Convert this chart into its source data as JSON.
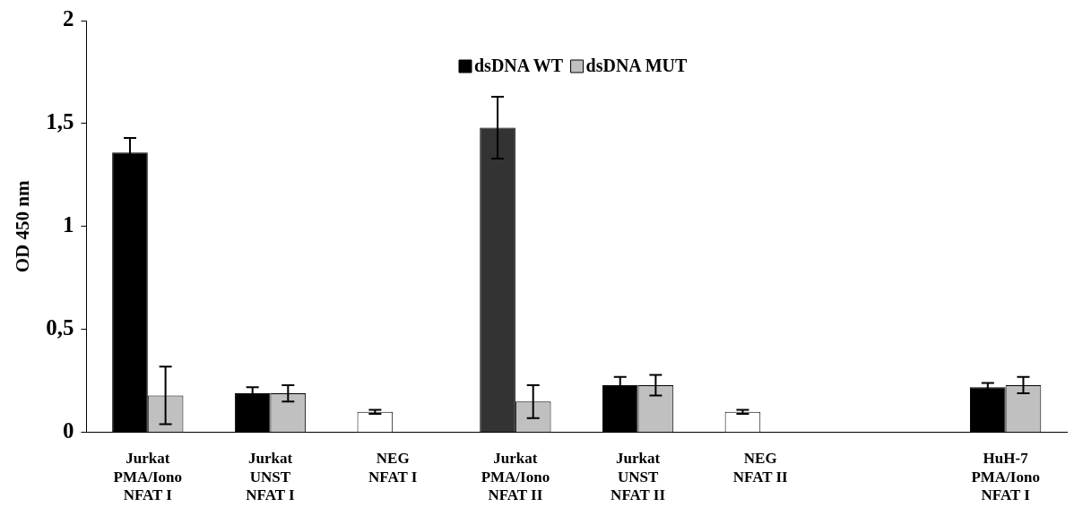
{
  "chart_data": {
    "type": "bar",
    "ylabel": "OD 450 nm",
    "categories": [
      "Jurkat\nPMA/Iono\nNFAT I",
      "Jurkat\nUNST\nNFAT I",
      "NEG\nNFAT I",
      "Jurkat\nPMA/Iono\nNFAT II",
      "Jurkat\nUNST\nNFAT II",
      "NEG\nNFAT II",
      null,
      "HuH-7\nPMA/Iono\nNFAT I"
    ],
    "series": [
      {
        "name": "dsDNA WT",
        "color": "#000000",
        "colors": [
          "#000000",
          "#000000",
          "#ffffff",
          "#333333",
          "#000000",
          "#ffffff",
          "#000000",
          "#000000"
        ],
        "values": [
          1.36,
          0.19,
          0.1,
          1.48,
          0.23,
          0.1,
          null,
          0.22
        ],
        "errors": [
          0.07,
          0.03,
          0.01,
          0.15,
          0.04,
          0.01,
          null,
          0.02
        ]
      },
      {
        "name": "dsDNA MUT",
        "color": "#c0c0c0",
        "values": [
          0.18,
          0.19,
          null,
          0.15,
          0.23,
          null,
          null,
          0.23
        ],
        "errors": [
          0.14,
          0.04,
          null,
          0.08,
          0.05,
          null,
          null,
          0.04
        ]
      }
    ],
    "ylim": [
      0,
      2
    ],
    "yticks": [
      0,
      {
        "value": 0.5,
        "label": "0,5"
      },
      1,
      {
        "value": 1.5,
        "label": "1,5"
      },
      2
    ],
    "grid": false,
    "legend": "top"
  }
}
